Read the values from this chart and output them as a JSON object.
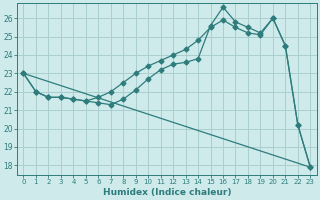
{
  "xlabel": "Humidex (Indice chaleur)",
  "bg_color": "#ceeaea",
  "grid_color": "#aacece",
  "line_color": "#2e7c7c",
  "xlim": [
    -0.5,
    23.5
  ],
  "ylim": [
    17.5,
    26.8
  ],
  "xticks": [
    0,
    1,
    2,
    3,
    4,
    5,
    6,
    7,
    8,
    9,
    10,
    11,
    12,
    13,
    14,
    15,
    16,
    17,
    18,
    19,
    20,
    21,
    22,
    23
  ],
  "yticks": [
    18,
    19,
    20,
    21,
    22,
    23,
    24,
    25,
    26
  ],
  "line1_x": [
    0,
    1,
    2,
    3,
    4,
    5,
    6,
    7,
    8,
    9,
    10,
    11,
    12,
    13,
    14,
    15,
    16,
    17,
    18,
    19,
    20,
    21,
    22,
    23
  ],
  "line1_y": [
    23.0,
    22.0,
    21.7,
    21.7,
    21.6,
    21.5,
    21.4,
    21.3,
    21.6,
    22.1,
    22.7,
    23.2,
    23.5,
    23.6,
    23.8,
    25.6,
    26.6,
    25.8,
    25.5,
    25.2,
    26.0,
    24.5,
    20.2,
    17.9
  ],
  "line2_x": [
    0,
    1,
    2,
    3,
    4,
    5,
    6,
    7,
    8,
    9,
    10,
    11,
    12,
    13,
    14,
    15,
    16,
    17,
    18,
    19,
    20,
    21,
    22,
    23
  ],
  "line2_y": [
    23.0,
    22.0,
    21.7,
    21.7,
    21.6,
    21.5,
    21.7,
    22.0,
    22.5,
    23.0,
    23.4,
    23.7,
    24.0,
    24.3,
    24.8,
    25.5,
    25.9,
    25.5,
    25.2,
    25.1,
    26.0,
    24.5,
    20.2,
    17.9
  ],
  "line3_x": [
    0,
    23
  ],
  "line3_y": [
    23.0,
    17.9
  ]
}
